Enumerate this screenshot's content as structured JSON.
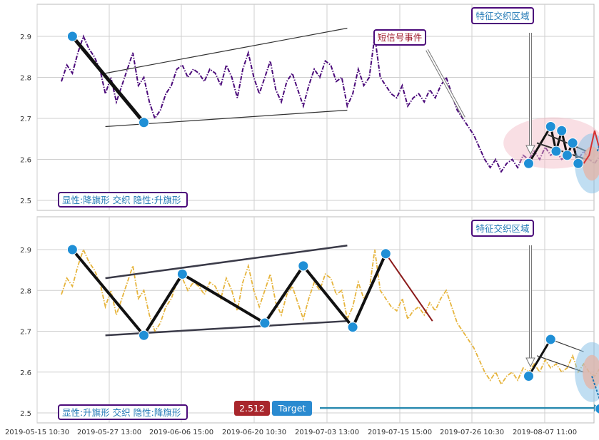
{
  "chart_data": [
    {
      "type": "line",
      "panel": "top",
      "series": [
        {
          "color": "#4b0a7a",
          "style": "dash-dot"
        }
      ],
      "x_ticks": [
        "2019-05-15 10:30",
        "2019-05-27 13:00",
        "2019-06-06 15:00",
        "2019-06-20 10:30",
        "2019-07-03 13:00",
        "2019-07-15 15:00",
        "2019-07-26 10:30",
        "2019-08-07 11:00"
      ],
      "y_ticks": [
        2.5,
        2.6,
        2.7,
        2.8,
        2.9
      ],
      "ylim": [
        2.47,
        2.98
      ],
      "grid": true,
      "price": [
        2.79,
        2.83,
        2.81,
        2.86,
        2.9,
        2.87,
        2.85,
        2.82,
        2.76,
        2.8,
        2.74,
        2.78,
        2.82,
        2.86,
        2.78,
        2.8,
        2.74,
        2.7,
        2.72,
        2.76,
        2.78,
        2.82,
        2.83,
        2.8,
        2.82,
        2.81,
        2.79,
        2.82,
        2.81,
        2.78,
        2.83,
        2.8,
        2.75,
        2.82,
        2.86,
        2.8,
        2.76,
        2.8,
        2.84,
        2.77,
        2.74,
        2.79,
        2.81,
        2.77,
        2.73,
        2.78,
        2.82,
        2.8,
        2.84,
        2.83,
        2.79,
        2.8,
        2.73,
        2.76,
        2.82,
        2.78,
        2.8,
        2.9,
        2.8,
        2.78,
        2.76,
        2.75,
        2.78,
        2.73,
        2.75,
        2.76,
        2.74,
        2.77,
        2.75,
        2.78,
        2.8,
        2.76,
        2.72,
        2.7,
        2.68,
        2.66,
        2.63,
        2.6,
        2.58,
        2.6,
        2.57,
        2.59,
        2.6,
        2.58,
        2.61,
        2.6,
        2.62,
        2.6,
        2.63,
        2.61,
        2.62,
        2.6,
        2.61,
        2.64,
        2.6,
        2.62,
        2.6,
        2.59,
        2.61,
        2.63
      ],
      "markers": [
        {
          "x": 2,
          "y": 2.9
        },
        {
          "x": 15,
          "y": 2.69
        },
        {
          "x": 85,
          "y": 2.59
        },
        {
          "x": 89,
          "y": 2.68
        },
        {
          "x": 90,
          "y": 2.62
        },
        {
          "x": 91,
          "y": 2.67
        },
        {
          "x": 92,
          "y": 2.61
        },
        {
          "x": 93,
          "y": 2.64
        },
        {
          "x": 94,
          "y": 2.59
        }
      ],
      "badge": "显性:降旗形 交织 隐性:升旗形",
      "annotations": [
        {
          "text": "特征交织区域",
          "color": "#1f77b4"
        },
        {
          "text": "短信号事件",
          "color": "#a02030"
        }
      ]
    },
    {
      "type": "line",
      "panel": "bottom",
      "series": [
        {
          "color": "#e6b43c",
          "style": "dash-dot"
        }
      ],
      "x_ticks": [
        "2019-05-15 10:30",
        "2019-05-27 13:00",
        "2019-06-06 15:00",
        "2019-06-20 10:30",
        "2019-07-03 13:00",
        "2019-07-15 15:00",
        "2019-07-26 10:30",
        "2019-08-07 11:00"
      ],
      "y_ticks": [
        2.5,
        2.6,
        2.7,
        2.8,
        2.9
      ],
      "ylim": [
        2.47,
        2.98
      ],
      "grid": true,
      "markers": [
        {
          "x": 2,
          "y": 2.9
        },
        {
          "x": 15,
          "y": 2.69
        },
        {
          "x": 22,
          "y": 2.84
        },
        {
          "x": 37,
          "y": 2.72
        },
        {
          "x": 44,
          "y": 2.86
        },
        {
          "x": 53,
          "y": 2.71
        },
        {
          "x": 59,
          "y": 2.89
        },
        {
          "x": 85,
          "y": 2.59
        },
        {
          "x": 89,
          "y": 2.68
        },
        {
          "x": 98,
          "y": 2.51
        }
      ],
      "badge": "显性:升旗形 交织 隐性:降旗形",
      "annotations": [
        {
          "text": "特征交织区域",
          "color": "#1f77b4"
        }
      ],
      "target": {
        "value": "2.512",
        "label": "Target"
      }
    }
  ]
}
